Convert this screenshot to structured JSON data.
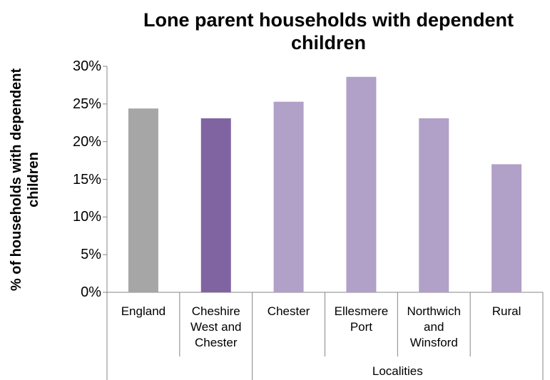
{
  "chart_data": {
    "type": "bar",
    "title": "Lone parent households with dependent children",
    "ylabel": "% of households with dependent children",
    "xlabel": "",
    "ylim": [
      0,
      30
    ],
    "yticks": [
      "0%",
      "5%",
      "10%",
      "15%",
      "20%",
      "25%",
      "30%"
    ],
    "categories": [
      "England",
      "Cheshire West and Chester",
      "Chester",
      "Ellesmere Port",
      "Northwich and Winsford",
      "Rural"
    ],
    "category_lines": [
      [
        "England"
      ],
      [
        "Cheshire",
        "West and",
        "Chester"
      ],
      [
        "Chester"
      ],
      [
        "Ellesmere",
        "Port"
      ],
      [
        "Northwich",
        "and",
        "Winsford"
      ],
      [
        "Rural"
      ]
    ],
    "values": [
      24.4,
      23.1,
      25.3,
      28.6,
      23.1,
      17.0
    ],
    "colors": [
      "#a6a6a6",
      "#8064a2",
      "#b1a0c7",
      "#b1a0c7",
      "#b1a0c7",
      "#b1a0c7"
    ],
    "group_label": "Localities",
    "grid": false
  }
}
